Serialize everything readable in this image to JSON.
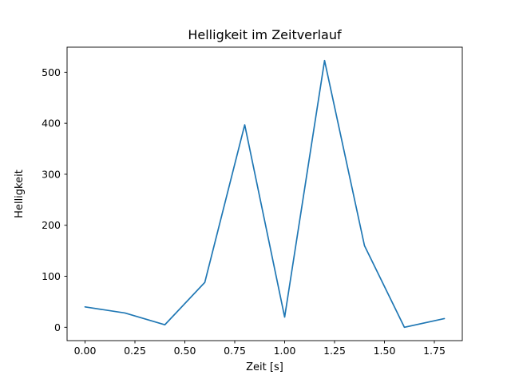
{
  "chart_data": {
    "type": "line",
    "title": "Helligkeit im Zeitverlauf",
    "xlabel": "Zeit [s]",
    "ylabel": "Helligkeit",
    "x": [
      0.0,
      0.2,
      0.4,
      0.6,
      0.8,
      1.0,
      1.2,
      1.4,
      1.6,
      1.8
    ],
    "series": [
      {
        "name": "Helligkeit",
        "values": [
          40,
          28,
          5,
          88,
          397,
          20,
          523,
          160,
          0,
          17
        ]
      }
    ],
    "line_color": "#1f77b4",
    "line_width": 1.7,
    "xlim": [
      -0.09,
      1.89
    ],
    "ylim": [
      -26.15,
      549.15
    ],
    "x_ticks": [
      0.0,
      0.25,
      0.5,
      0.75,
      1.0,
      1.25,
      1.5,
      1.75
    ],
    "x_tick_labels": [
      "0.00",
      "0.25",
      "0.50",
      "0.75",
      "1.00",
      "1.25",
      "1.50",
      "1.75"
    ],
    "y_ticks": [
      0,
      100,
      200,
      300,
      400,
      500
    ],
    "y_tick_labels": [
      "0",
      "100",
      "200",
      "300",
      "400",
      "500"
    ],
    "grid": false,
    "legend_position": "none",
    "axis_color": "#000000"
  }
}
